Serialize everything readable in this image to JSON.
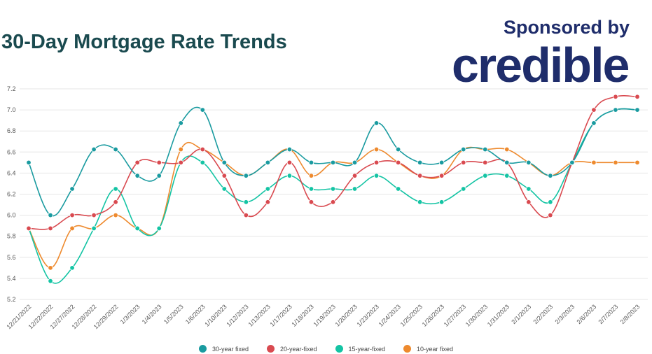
{
  "header": {
    "title": "30-Day Mortgage Rate Trends",
    "sponsor_text": "Sponsored by",
    "brand": "credible"
  },
  "chart_data": {
    "type": "line",
    "title": "30-Day Mortgage Rate Trends",
    "xlabel": "",
    "ylabel": "",
    "ylim": [
      5.2,
      7.2
    ],
    "yticks": [
      5.2,
      5.4,
      5.6,
      5.8,
      6.0,
      6.2,
      6.4,
      6.6,
      6.8,
      7.0,
      7.2
    ],
    "grid": true,
    "legend_position": "bottom",
    "categories": [
      "12/21/2022",
      "12/22/2022",
      "12/27/2022",
      "12/28/2022",
      "12/29/2022",
      "1/3/2023",
      "1/4/2023",
      "1/5/2023",
      "1/6/2023",
      "1/10/2023",
      "1/12/2023",
      "1/13/2023",
      "1/17/2023",
      "1/18/2023",
      "1/19/2023",
      "1/20/2023",
      "1/23/2023",
      "1/24/2023",
      "1/25/2023",
      "1/26/2023",
      "1/27/2023",
      "1/30/2023",
      "1/31/2023",
      "2/1/2023",
      "2/2/2023",
      "2/3/2023",
      "2/6/2023",
      "2/7/2023",
      "2/8/2023"
    ],
    "series": [
      {
        "name": "30-year fixed",
        "color": "#1a9ba0",
        "values": [
          6.5,
          6.0,
          6.25,
          6.625,
          6.625,
          6.375,
          6.375,
          6.875,
          7.0,
          6.5,
          6.375,
          6.5,
          6.625,
          6.5,
          6.5,
          6.5,
          6.875,
          6.625,
          6.5,
          6.5,
          6.625,
          6.625,
          6.5,
          6.5,
          6.375,
          6.5,
          6.875,
          7.0,
          7.0
        ]
      },
      {
        "name": "20-year-fixed",
        "color": "#d94a50",
        "values": [
          5.875,
          5.875,
          6.0,
          6.0,
          6.125,
          6.5,
          6.5,
          6.5,
          6.625,
          6.375,
          6.0,
          6.125,
          6.5,
          6.125,
          6.125,
          6.375,
          6.5,
          6.5,
          6.375,
          6.375,
          6.5,
          6.5,
          6.5,
          6.125,
          6.0,
          6.5,
          7.0,
          7.125,
          7.125
        ]
      },
      {
        "name": "15-year-fixed",
        "color": "#14c4a4",
        "values": [
          5.875,
          5.375,
          5.5,
          5.875,
          6.25,
          5.875,
          5.875,
          6.5,
          6.5,
          6.25,
          6.125,
          6.25,
          6.375,
          6.25,
          6.25,
          6.25,
          6.375,
          6.25,
          6.125,
          6.125,
          6.25,
          6.375,
          6.375,
          6.25,
          6.125,
          6.5,
          6.875,
          7.0,
          7.0
        ]
      },
      {
        "name": "10-year fixed",
        "color": "#ee8a2e",
        "values": [
          5.875,
          5.5,
          5.875,
          5.875,
          6.0,
          5.875,
          5.875,
          6.625,
          6.625,
          6.5,
          6.375,
          6.5,
          6.625,
          6.375,
          6.5,
          6.5,
          6.625,
          6.5,
          6.375,
          6.375,
          6.625,
          6.625,
          6.625,
          6.5,
          6.375,
          6.5,
          6.5,
          6.5,
          6.5
        ]
      }
    ]
  }
}
